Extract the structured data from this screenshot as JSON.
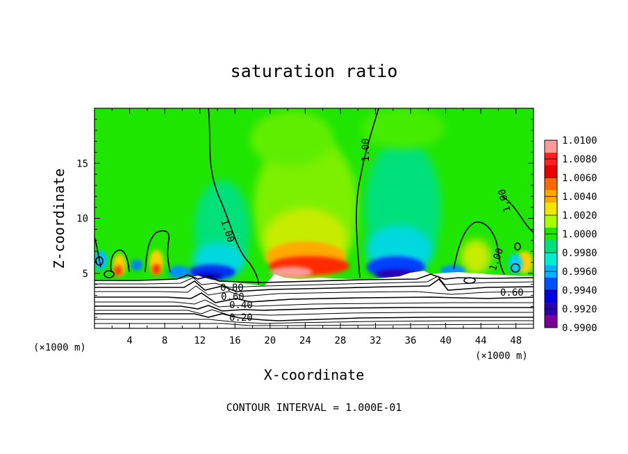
{
  "chart_data": {
    "type": "heatmap",
    "title": "saturation ratio",
    "xlabel": "X-coordinate",
    "ylabel": "Z-coordinate",
    "x_unit_label": "(×1000 m)",
    "x_unit_label_right": "(×1000 m)",
    "xlim": [
      0,
      50
    ],
    "ylim": [
      0,
      20
    ],
    "x_ticks": [
      4,
      8,
      12,
      16,
      20,
      24,
      28,
      32,
      36,
      40,
      44,
      48
    ],
    "y_ticks": [
      5,
      10,
      15
    ],
    "colorbar": {
      "levels": [
        "1.0100",
        "1.0080",
        "1.0060",
        "1.0040",
        "1.0020",
        "1.0000",
        "0.9980",
        "0.9960",
        "0.9940",
        "0.9920",
        "0.9900"
      ],
      "colors": [
        "#ff9a9a",
        "#ff2020",
        "#e60000",
        "#ff6a00",
        "#ffa800",
        "#f0e600",
        "#a8ff00",
        "#1ee600",
        "#00e07a",
        "#00ecd0",
        "#00b4ff",
        "#0050ff",
        "#0000e0",
        "#2a00b4",
        "#7a009a"
      ]
    },
    "contour_labels": [
      "1.00",
      "1.00",
      "1.00",
      "1.00",
      "0.80",
      "0.60",
      "0.40",
      "0.20",
      "0.60"
    ],
    "footer": "CONTOUR INTERVAL = 1.000E-01"
  },
  "colors": {
    "background": "#ffffff",
    "field_base": "#1ee600",
    "below_ground": "#ffffff",
    "contour": "#000000"
  }
}
